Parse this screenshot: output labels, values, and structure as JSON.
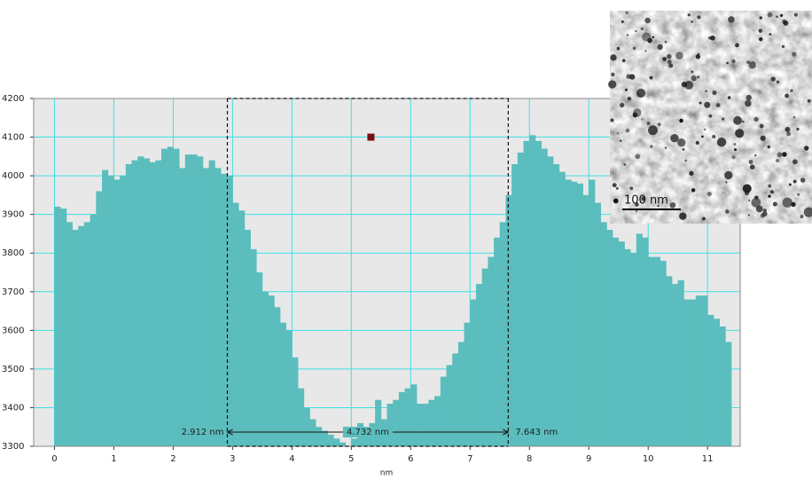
{
  "chart_data": {
    "type": "histogram",
    "x_label": "nm",
    "bins": [
      0,
      0.1,
      0.2,
      0.3,
      0.4,
      0.5,
      0.6,
      0.7,
      0.8,
      0.9,
      1,
      1.1,
      1.2,
      1.3,
      1.4,
      1.5,
      1.6,
      1.7,
      1.8,
      1.9,
      2,
      2.1,
      2.2,
      2.3,
      2.4,
      2.5,
      2.6,
      2.7,
      2.8,
      2.9,
      3,
      3.1,
      3.2,
      3.3,
      3.4,
      3.5,
      3.6,
      3.7,
      3.8,
      3.9,
      4,
      4.1,
      4.2,
      4.3,
      4.4,
      4.5,
      4.6,
      4.7,
      4.8,
      4.9,
      5,
      5.1,
      5.2,
      5.3,
      5.4,
      5.5,
      5.6,
      5.7,
      5.8,
      5.9,
      6,
      6.1,
      6.2,
      6.3,
      6.4,
      6.5,
      6.6,
      6.7,
      6.8,
      6.9,
      7,
      7.1,
      7.2,
      7.3,
      7.4,
      7.5,
      7.6,
      7.7,
      7.8,
      7.9,
      8,
      8.1,
      8.2,
      8.3,
      8.4,
      8.5,
      8.6,
      8.7,
      8.8,
      8.9,
      9,
      9.1,
      9.2,
      9.3,
      9.4,
      9.5,
      9.6,
      9.7,
      9.8,
      9.9,
      10,
      10.1,
      10.2,
      10.3,
      10.4,
      10.5,
      10.6,
      10.7,
      10.8,
      10.9,
      11,
      11.1,
      11.2,
      11.3,
      11.4
    ],
    "values": [
      3920,
      3915,
      3880,
      3860,
      3870,
      3880,
      3900,
      3960,
      4015,
      4000,
      3990,
      4000,
      4030,
      4040,
      4050,
      4045,
      4035,
      4040,
      4070,
      4075,
      4070,
      4020,
      4055,
      4055,
      4050,
      4020,
      4040,
      4020,
      4005,
      4000,
      3930,
      3910,
      3860,
      3810,
      3750,
      3700,
      3690,
      3660,
      3620,
      3600,
      3530,
      3450,
      3400,
      3370,
      3350,
      3340,
      3330,
      3320,
      3310,
      3300,
      3320,
      3360,
      3350,
      3360,
      3420,
      3370,
      3410,
      3420,
      3440,
      3450,
      3460,
      3410,
      3410,
      3420,
      3430,
      3480,
      3510,
      3540,
      3570,
      3620,
      3680,
      3720,
      3760,
      3790,
      3840,
      3880,
      3950,
      4030,
      4060,
      4090,
      4105,
      4090,
      4070,
      4050,
      4030,
      4010,
      3990,
      3985,
      3980,
      3950,
      3990,
      3930,
      3880,
      3860,
      3840,
      3830,
      3810,
      3800,
      3850,
      3840,
      3790,
      3790,
      3780,
      3740,
      3720,
      3730,
      3680,
      3680,
      3690,
      3690,
      3640,
      3630,
      3610,
      3570
    ],
    "color": "#5bbdbd",
    "xlim": [
      -0.35,
      11.55
    ],
    "xticks": [
      0,
      1,
      2,
      3,
      4,
      5,
      6,
      7,
      8,
      9,
      10,
      11
    ],
    "ylim": [
      3300,
      4200
    ],
    "yticks": [
      3300,
      3400,
      3500,
      3600,
      3700,
      3800,
      3900,
      4000,
      4100,
      4200
    ],
    "grid": true,
    "grid_color": "#3fe0e6",
    "background": "#e8e8e8",
    "selection": {
      "start": {
        "value": 2.912,
        "label": "2.912 nm"
      },
      "width": {
        "value": 4.732,
        "label": "4.732 nm"
      },
      "end": {
        "value": 7.643,
        "label": "7.643 nm"
      }
    },
    "marker": {
      "x": 5.33,
      "y": 4100,
      "color": "#7a1010"
    }
  },
  "inset": {
    "scale_bar": "100 nm"
  }
}
